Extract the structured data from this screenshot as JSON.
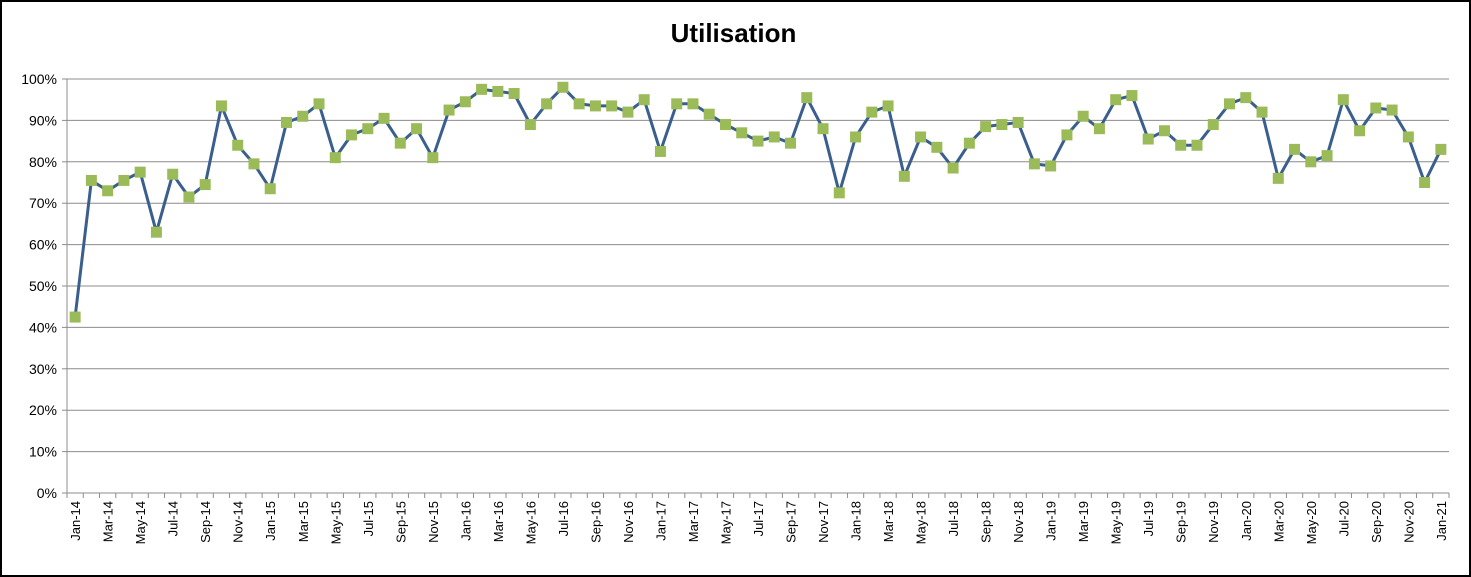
{
  "chart_data": {
    "type": "line",
    "title": "Utilisation",
    "xlabel": "",
    "ylabel": "",
    "ylim": [
      0,
      1
    ],
    "y_tick_labels": [
      "0%",
      "10%",
      "20%",
      "30%",
      "40%",
      "50%",
      "60%",
      "70%",
      "80%",
      "90%",
      "100%"
    ],
    "x_tick_labels": [
      "Jan-14",
      "Mar-14",
      "May-14",
      "Jul-14",
      "Sep-14",
      "Nov-14",
      "Jan-15",
      "Mar-15",
      "May-15",
      "Jul-15",
      "Sep-15",
      "Nov-15",
      "Jan-16",
      "Mar-16",
      "May-16",
      "Jul-16",
      "Sep-16",
      "Nov-16",
      "Jan-17",
      "Mar-17",
      "May-17",
      "Jul-17",
      "Sep-17",
      "Nov-17",
      "Jan-18",
      "Mar-18",
      "May-18",
      "Jul-18",
      "Sep-18",
      "Nov-18",
      "Jan-19",
      "Mar-19",
      "May-19",
      "Jul-19",
      "Sep-19",
      "Nov-19",
      "Jan-20",
      "Mar-20",
      "May-20",
      "Jul-20",
      "Sep-20",
      "Nov-20",
      "Jan-21"
    ],
    "grid": true,
    "legend": "none",
    "colors": {
      "line": "#3a5f8f",
      "marker": "#9bbb59"
    },
    "x": [
      "Jan-14",
      "Feb-14",
      "Mar-14",
      "Apr-14",
      "May-14",
      "Jun-14",
      "Jul-14",
      "Aug-14",
      "Sep-14",
      "Oct-14",
      "Nov-14",
      "Dec-14",
      "Jan-15",
      "Feb-15",
      "Mar-15",
      "Apr-15",
      "May-15",
      "Jun-15",
      "Jul-15",
      "Aug-15",
      "Sep-15",
      "Oct-15",
      "Nov-15",
      "Dec-15",
      "Jan-16",
      "Feb-16",
      "Mar-16",
      "Apr-16",
      "May-16",
      "Jun-16",
      "Jul-16",
      "Aug-16",
      "Sep-16",
      "Oct-16",
      "Nov-16",
      "Dec-16",
      "Jan-17",
      "Feb-17",
      "Mar-17",
      "Apr-17",
      "May-17",
      "Jun-17",
      "Jul-17",
      "Aug-17",
      "Sep-17",
      "Oct-17",
      "Nov-17",
      "Dec-17",
      "Jan-18",
      "Feb-18",
      "Mar-18",
      "Apr-18",
      "May-18",
      "Jun-18",
      "Jul-18",
      "Aug-18",
      "Sep-18",
      "Oct-18",
      "Nov-18",
      "Dec-18",
      "Jan-19",
      "Feb-19",
      "Mar-19",
      "Apr-19",
      "May-19",
      "Jun-19",
      "Jul-19",
      "Aug-19",
      "Sep-19",
      "Oct-19",
      "Nov-19",
      "Dec-19",
      "Jan-20",
      "Feb-20",
      "Mar-20",
      "Apr-20",
      "May-20",
      "Jun-20",
      "Jul-20",
      "Aug-20",
      "Sep-20",
      "Oct-20",
      "Nov-20",
      "Dec-20",
      "Jan-21"
    ],
    "series": [
      {
        "values": [
          0.425,
          0.755,
          0.73,
          0.755,
          0.775,
          0.63,
          0.77,
          0.715,
          0.745,
          0.935,
          0.84,
          0.795,
          0.735,
          0.895,
          0.91,
          0.94,
          0.81,
          0.865,
          0.88,
          0.905,
          0.845,
          0.88,
          0.81,
          0.925,
          0.945,
          0.975,
          0.97,
          0.965,
          0.89,
          0.94,
          0.98,
          0.94,
          0.935,
          0.935,
          0.92,
          0.95,
          0.825,
          0.94,
          0.94,
          0.915,
          0.89,
          0.87,
          0.85,
          0.86,
          0.845,
          0.955,
          0.88,
          0.725,
          0.86,
          0.92,
          0.935,
          0.765,
          0.86,
          0.835,
          0.785,
          0.845,
          0.885,
          0.89,
          0.895,
          0.795,
          0.79,
          0.865,
          0.91,
          0.88,
          0.95,
          0.96,
          0.855,
          0.875,
          0.84,
          0.84,
          0.89,
          0.94,
          0.955,
          0.92,
          0.76,
          0.83,
          0.8,
          0.815,
          0.95,
          0.875,
          0.93,
          0.925,
          0.86,
          0.75,
          0.83
        ]
      }
    ]
  }
}
